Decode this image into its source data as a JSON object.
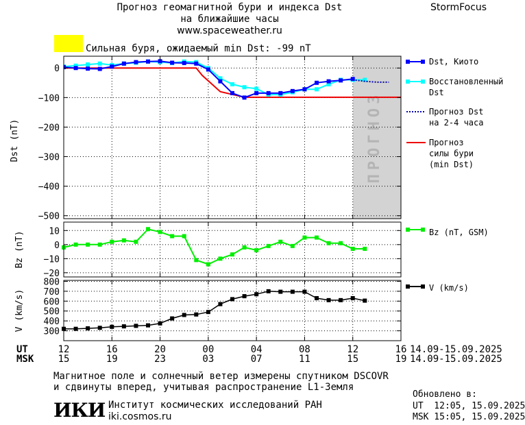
{
  "header": {
    "title_line1": "Прогноз геомагнитной бури и индекса Dst",
    "title_line2": "на ближайшие часы",
    "website": "www.spaceweather.ru",
    "brand": "StormFocus"
  },
  "alert": {
    "text": "Сильная буря, ожидаемый min Dst: -99 nT",
    "color": "#ffff00"
  },
  "legend": {
    "dst_kyoto": "Dst, Киото",
    "restored_1": "Восстановленный",
    "restored_2": "Dst",
    "forecast_1": "Прогноз Dst",
    "forecast_2": "на 2-4 часа",
    "storm_1": "Прогноз",
    "storm_2": "силы бури",
    "storm_3": "(min Dst)",
    "bz": "Bz (nT, GSM)",
    "v": "V (km/s)"
  },
  "forecast_band_label": "ПРОГНОЗ",
  "time_axis": {
    "ut_label": "UT",
    "msk_label": "MSK",
    "ut_ticks": [
      "12",
      "16",
      "20",
      "00",
      "04",
      "08",
      "12",
      "16"
    ],
    "msk_ticks": [
      "15",
      "19",
      "23",
      "03",
      "07",
      "11",
      "15",
      "19"
    ],
    "ut_range": "14.09-15.09.2025",
    "msk_range": "14.09-15.09.2025"
  },
  "footer": {
    "note_line1": "Магнитное поле и солнечный ветер измерены спутником DSCOVR",
    "note_line2": "и сдвинуты вперед, учитывая распространение L1-Земля",
    "logo_text": "ИКИ",
    "institute": "Институт космических исследований РАН",
    "institute_site": "iki.cosmos.ru",
    "updated_label": "Обновлено в:",
    "updated_ut": "UT  12:05, 15.09.2025",
    "updated_msk": "MSK 15:05, 15.09.2025"
  },
  "colors": {
    "dst": "#0000ff",
    "restored": "#00ffff",
    "forecast": "#0000aa",
    "storm": "#ee0000",
    "bz": "#00ee00",
    "v": "#000000",
    "band": "#d3d3d3"
  },
  "chart_data": [
    {
      "type": "line",
      "panel": "Dst",
      "ylabel": "Dst (nT)",
      "ylim": [
        -510,
        40
      ],
      "yticks": [
        0,
        -100,
        -200,
        -300,
        -400,
        -500
      ],
      "x_unit": "hours since 12 UT 14.09.2025",
      "xlim": [
        0,
        28
      ],
      "forecast_band": [
        24,
        28
      ],
      "series": [
        {
          "name": "Dst, Киото",
          "marker": "square",
          "x": [
            0,
            1,
            2,
            3,
            4,
            5,
            6,
            7,
            8,
            9,
            10,
            11,
            12,
            13,
            14,
            15,
            16,
            17,
            18,
            19,
            20,
            21,
            22,
            23,
            24
          ],
          "values": [
            3,
            0,
            -2,
            -3,
            5,
            15,
            20,
            22,
            23,
            18,
            17,
            15,
            -5,
            -45,
            -85,
            -100,
            -85,
            -85,
            -85,
            -78,
            -72,
            -50,
            -45,
            -42,
            -37
          ]
        },
        {
          "name": "Восстановленный Dst",
          "marker": "square",
          "x": [
            0,
            1,
            2,
            3,
            4,
            5,
            6,
            7,
            8,
            9,
            10,
            11,
            12,
            13,
            14,
            15,
            16,
            17,
            18,
            19,
            20,
            21,
            22,
            23,
            24,
            25
          ],
          "values": [
            5,
            8,
            12,
            15,
            10,
            15,
            18,
            22,
            20,
            17,
            22,
            20,
            0,
            -35,
            -55,
            -65,
            -70,
            -90,
            -90,
            -82,
            -72,
            -72,
            -55,
            -40,
            -40,
            -40
          ]
        },
        {
          "name": "Прогноз Dst на 2-4 часа",
          "style": "dotted",
          "x": [
            24,
            25,
            26,
            27
          ],
          "values": [
            -40,
            -45,
            -48,
            -48
          ]
        },
        {
          "name": "Прогноз силы бури (min Dst)",
          "x": [
            0,
            9,
            11,
            11.5,
            13,
            15,
            28
          ],
          "values": [
            0,
            0,
            0,
            -25,
            -80,
            -99,
            -99
          ]
        }
      ]
    },
    {
      "type": "line",
      "panel": "Bz",
      "ylabel": "Bz (nT)",
      "ylim": [
        -23,
        16
      ],
      "yticks": [
        10,
        0,
        -10,
        -20
      ],
      "x": [
        0,
        1,
        2,
        3,
        4,
        5,
        6,
        7,
        8,
        9,
        10,
        11,
        12,
        13,
        14,
        15,
        16,
        17,
        18,
        19,
        20,
        21,
        22,
        23,
        24,
        25
      ],
      "series": [
        {
          "name": "Bz (nT, GSM)",
          "values": [
            -2,
            0,
            0,
            0,
            2,
            3,
            2,
            11,
            9,
            6,
            6,
            -11,
            -14,
            -10,
            -7,
            -2,
            -4,
            -1,
            2,
            -1,
            5,
            5,
            1,
            1,
            -3,
            -3
          ]
        }
      ]
    },
    {
      "type": "line",
      "panel": "V",
      "ylabel": "V (km/s)",
      "ylim": [
        200,
        810
      ],
      "yticks": [
        800,
        700,
        600,
        500,
        400,
        300
      ],
      "x": [
        0,
        1,
        2,
        3,
        4,
        5,
        6,
        7,
        8,
        9,
        10,
        11,
        12,
        13,
        14,
        15,
        16,
        17,
        18,
        19,
        20,
        21,
        22,
        23,
        24,
        25
      ],
      "series": [
        {
          "name": "V (km/s)",
          "values": [
            320,
            320,
            325,
            330,
            340,
            345,
            350,
            355,
            375,
            425,
            460,
            465,
            490,
            570,
            620,
            650,
            670,
            700,
            695,
            695,
            695,
            630,
            610,
            610,
            630,
            605
          ]
        }
      ]
    }
  ]
}
